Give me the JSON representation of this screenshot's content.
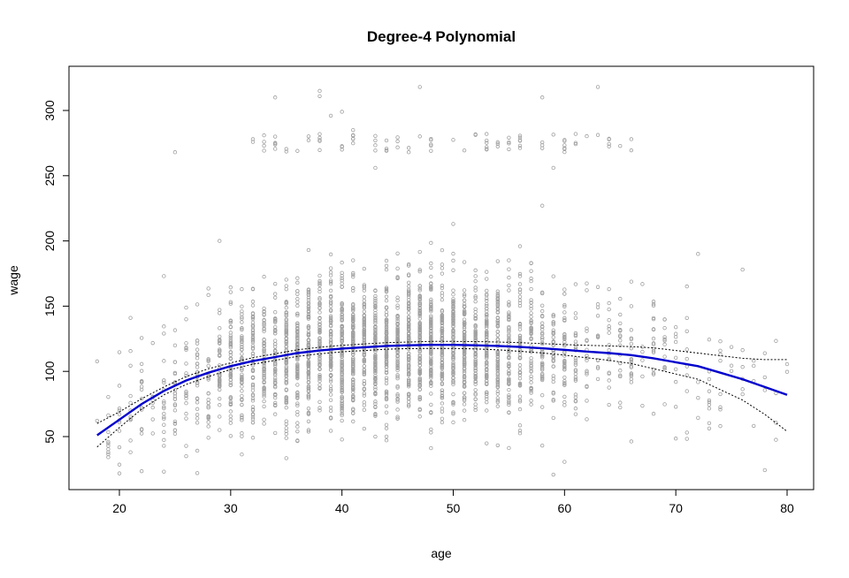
{
  "chart_data": {
    "type": "scatter",
    "title": "Degree-4 Polynomial",
    "xlabel": "age",
    "ylabel": "wage",
    "xlim": [
      18,
      80
    ],
    "ylim": [
      20,
      320
    ],
    "x_ticks": [
      20,
      30,
      40,
      50,
      60,
      70,
      80
    ],
    "y_ticks": [
      50,
      100,
      150,
      200,
      250,
      300
    ],
    "grid": false,
    "legend": "none",
    "colors": {
      "points": "#a0a0a0",
      "fit": "#0000cd",
      "band": "#000000"
    },
    "series": [
      {
        "type": "line",
        "style": "fit",
        "x": [
          18,
          20,
          22,
          24,
          26,
          28,
          30,
          32,
          34,
          36,
          38,
          40,
          42,
          44,
          46,
          48,
          50,
          52,
          54,
          56,
          58,
          60,
          62,
          64,
          66,
          68,
          70,
          72,
          74,
          76,
          78,
          80
        ],
        "y": [
          51,
          63,
          75,
          85,
          93,
          99,
          104,
          108,
          111,
          114,
          116,
          117.5,
          118.5,
          119.5,
          120,
          120.3,
          120.3,
          120,
          119.5,
          118.7,
          117.7,
          116.5,
          115.2,
          114,
          112.5,
          110,
          107,
          104,
          99,
          94,
          88,
          82
        ]
      },
      {
        "type": "line",
        "style": "band-upper",
        "x": [
          18,
          20,
          22,
          24,
          26,
          28,
          30,
          32,
          34,
          36,
          38,
          40,
          42,
          44,
          46,
          48,
          50,
          52,
          54,
          56,
          58,
          60,
          62,
          64,
          66,
          68,
          70,
          72,
          74,
          76,
          78,
          80
        ],
        "y": [
          60,
          69,
          79,
          88,
          96,
          102,
          106.5,
          110.5,
          113.5,
          116.5,
          118.5,
          120,
          121,
          122,
          122.5,
          123,
          123,
          122.8,
          122.5,
          122,
          121.3,
          120.5,
          120,
          119.5,
          119,
          118,
          116,
          114,
          112,
          110,
          109,
          109
        ]
      },
      {
        "type": "line",
        "style": "band-lower",
        "x": [
          18,
          20,
          22,
          24,
          26,
          28,
          30,
          32,
          34,
          36,
          38,
          40,
          42,
          44,
          46,
          48,
          50,
          52,
          54,
          56,
          58,
          60,
          62,
          64,
          66,
          68,
          70,
          72,
          74,
          76,
          78,
          80
        ],
        "y": [
          42,
          57,
          71,
          82,
          90,
          96,
          101.5,
          105.5,
          108.5,
          111.5,
          113.5,
          115,
          116,
          117,
          117.5,
          117.6,
          117.6,
          117.2,
          116.5,
          115.4,
          114.1,
          112.5,
          110.4,
          108.5,
          106,
          102,
          98,
          94,
          86,
          78,
          67,
          54
        ]
      }
    ],
    "scatter_generation": {
      "n": 3000,
      "x_range": [
        18,
        80
      ],
      "note_outliers": [
        {
          "x": 32,
          "y": 278
        },
        {
          "x": 33,
          "y": 276
        },
        {
          "x": 34,
          "y": 310
        },
        {
          "x": 36,
          "y": 269
        },
        {
          "x": 38,
          "y": 315
        },
        {
          "x": 38,
          "y": 311
        },
        {
          "x": 39,
          "y": 296
        },
        {
          "x": 40,
          "y": 299
        },
        {
          "x": 41,
          "y": 285
        },
        {
          "x": 43,
          "y": 256
        },
        {
          "x": 47,
          "y": 318
        },
        {
          "x": 50,
          "y": 213
        },
        {
          "x": 58,
          "y": 227
        },
        {
          "x": 58,
          "y": 310
        },
        {
          "x": 59,
          "y": 256
        },
        {
          "x": 61,
          "y": 282
        },
        {
          "x": 63,
          "y": 318
        },
        {
          "x": 66,
          "y": 278
        },
        {
          "x": 72,
          "y": 190
        },
        {
          "x": 76,
          "y": 178
        },
        {
          "x": 25,
          "y": 268
        },
        {
          "x": 29,
          "y": 200
        },
        {
          "x": 24,
          "y": 173
        },
        {
          "x": 21,
          "y": 141
        }
      ]
    }
  }
}
